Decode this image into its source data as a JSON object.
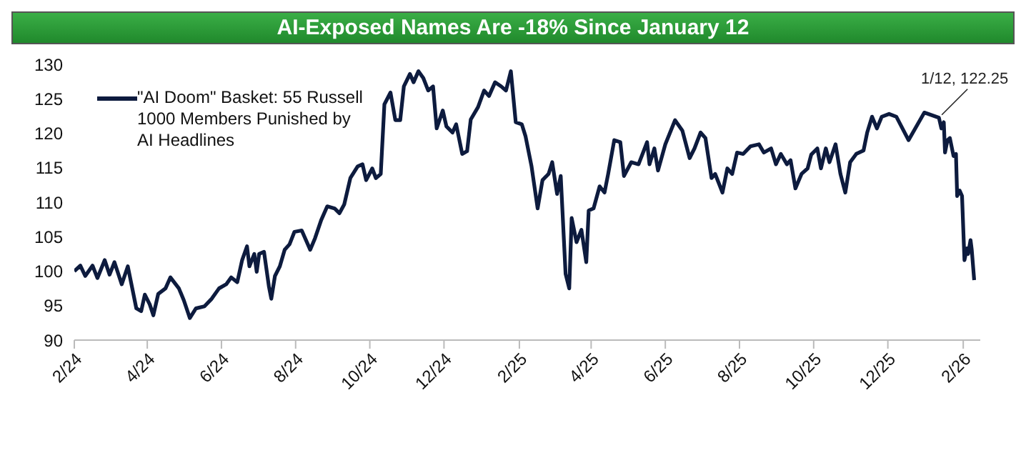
{
  "chart_data": {
    "type": "line",
    "title": "AI-Exposed Names Are -18% Since January 12",
    "legend": "top left",
    "grid": false,
    "marker": "none",
    "line_style": "solid",
    "ylim": [
      90,
      130
    ],
    "yticks": [
      90,
      95,
      100,
      105,
      110,
      115,
      120,
      125,
      130
    ],
    "xlim": [
      "2024-02-01",
      "2026-02-15"
    ],
    "xticks": [
      {
        "value": "2024-02-01",
        "label": "2/24"
      },
      {
        "value": "2024-04-01",
        "label": "4/24"
      },
      {
        "value": "2024-06-01",
        "label": "6/24"
      },
      {
        "value": "2024-08-01",
        "label": "8/24"
      },
      {
        "value": "2024-10-01",
        "label": "10/24"
      },
      {
        "value": "2024-12-01",
        "label": "12/24"
      },
      {
        "value": "2025-02-01",
        "label": "2/25"
      },
      {
        "value": "2025-04-01",
        "label": "4/25"
      },
      {
        "value": "2025-06-01",
        "label": "6/25"
      },
      {
        "value": "2025-08-01",
        "label": "8/25"
      },
      {
        "value": "2025-10-01",
        "label": "10/25"
      },
      {
        "value": "2025-12-01",
        "label": "12/25"
      },
      {
        "value": "2026-02-01",
        "label": "2/26"
      }
    ],
    "annotations": [
      {
        "text": "1/12, 122.25",
        "x": "2026-01-12",
        "y": 122.25
      }
    ],
    "x": [
      "2024-02-01",
      "2024-02-06",
      "2024-02-10",
      "2024-02-16",
      "2024-02-20",
      "2024-02-26",
      "2024-03-01",
      "2024-03-05",
      "2024-03-11",
      "2024-03-16",
      "2024-03-23",
      "2024-03-27",
      "2024-03-30",
      "2024-04-03",
      "2024-04-06",
      "2024-04-10",
      "2024-04-16",
      "2024-04-20",
      "2024-04-27",
      "2024-05-01",
      "2024-05-06",
      "2024-05-11",
      "2024-05-18",
      "2024-05-24",
      "2024-05-30",
      "2024-06-05",
      "2024-06-09",
      "2024-06-14",
      "2024-06-18",
      "2024-06-22",
      "2024-06-24",
      "2024-06-28",
      "2024-06-30",
      "2024-07-02",
      "2024-07-06",
      "2024-07-10",
      "2024-07-12",
      "2024-07-15",
      "2024-07-19",
      "2024-07-23",
      "2024-07-27",
      "2024-07-31",
      "2024-08-06",
      "2024-08-13",
      "2024-08-17",
      "2024-08-22",
      "2024-08-27",
      "2024-09-02",
      "2024-09-06",
      "2024-09-10",
      "2024-09-15",
      "2024-09-21",
      "2024-09-25",
      "2024-09-28",
      "2024-10-03",
      "2024-10-06",
      "2024-10-10",
      "2024-10-13",
      "2024-10-18",
      "2024-10-22",
      "2024-10-26",
      "2024-10-29",
      "2024-11-03",
      "2024-11-06",
      "2024-11-10",
      "2024-11-14",
      "2024-11-18",
      "2024-11-22",
      "2024-11-25",
      "2024-11-30",
      "2024-12-03",
      "2024-12-08",
      "2024-12-11",
      "2024-12-16",
      "2024-12-20",
      "2024-12-23",
      "2024-12-29",
      "2025-01-03",
      "2025-01-07",
      "2025-01-12",
      "2025-01-17",
      "2025-01-21",
      "2025-01-25",
      "2025-01-29",
      "2025-02-03",
      "2025-02-06",
      "2025-02-11",
      "2025-02-16",
      "2025-02-20",
      "2025-02-25",
      "2025-02-28",
      "2025-03-04",
      "2025-03-07",
      "2025-03-11",
      "2025-03-14",
      "2025-03-16",
      "2025-03-20",
      "2025-03-24",
      "2025-03-28",
      "2025-03-30",
      "2025-04-03",
      "2025-04-08",
      "2025-04-12",
      "2025-04-15",
      "2025-04-20",
      "2025-04-25",
      "2025-04-28",
      "2025-05-04",
      "2025-05-10",
      "2025-05-17",
      "2025-05-19",
      "2025-05-23",
      "2025-05-26",
      "2025-06-01",
      "2025-06-09",
      "2025-06-15",
      "2025-06-21",
      "2025-06-25",
      "2025-06-30",
      "2025-07-04",
      "2025-07-09",
      "2025-07-12",
      "2025-07-18",
      "2025-07-22",
      "2025-07-26",
      "2025-07-30",
      "2025-08-04",
      "2025-08-10",
      "2025-08-17",
      "2025-08-21",
      "2025-08-27",
      "2025-08-31",
      "2025-09-04",
      "2025-09-09",
      "2025-09-12",
      "2025-09-16",
      "2025-09-21",
      "2025-09-26",
      "2025-09-29",
      "2025-10-04",
      "2025-10-07",
      "2025-10-11",
      "2025-10-14",
      "2025-10-19",
      "2025-10-23",
      "2025-10-27",
      "2025-10-31",
      "2025-11-05",
      "2025-11-11",
      "2025-11-14",
      "2025-11-18",
      "2025-11-22",
      "2025-11-26",
      "2025-12-02",
      "2025-12-08",
      "2025-12-18",
      "2025-12-31",
      "2026-01-12",
      "2026-01-14",
      "2026-01-16",
      "2026-01-17",
      "2026-01-19",
      "2026-01-21",
      "2026-01-24",
      "2026-01-26",
      "2026-01-27",
      "2026-01-29",
      "2026-01-31",
      "2026-02-02",
      "2026-02-04",
      "2026-02-05",
      "2026-02-07",
      "2026-02-08",
      "2026-02-10"
    ],
    "series": [
      {
        "name": "\"AI Doom\" Basket: 55 Russell 1000 Members Punished by AI Headlines",
        "color": "#0d1b3e",
        "values": [
          100.0,
          100.8,
          99.3,
          100.8,
          99.0,
          101.6,
          99.5,
          101.3,
          98.1,
          100.7,
          94.6,
          94.2,
          96.6,
          95.2,
          93.6,
          96.7,
          97.5,
          99.1,
          97.5,
          95.8,
          93.2,
          94.6,
          94.9,
          96.0,
          97.5,
          98.1,
          99.1,
          98.4,
          101.6,
          103.6,
          100.7,
          102.5,
          99.9,
          102.5,
          102.8,
          97.8,
          96.0,
          99.3,
          100.7,
          103.1,
          103.9,
          105.7,
          105.9,
          103.1,
          104.8,
          107.4,
          109.4,
          109.1,
          108.4,
          109.7,
          113.5,
          115.2,
          115.5,
          113.2,
          114.9,
          113.5,
          114.1,
          124.2,
          125.9,
          121.9,
          121.9,
          126.8,
          128.6,
          127.4,
          129.0,
          128.0,
          126.2,
          126.8,
          120.7,
          123.3,
          121.0,
          120.1,
          121.3,
          117.0,
          117.4,
          122.0,
          123.8,
          126.2,
          125.4,
          127.4,
          126.8,
          126.2,
          129.0,
          121.6,
          121.3,
          119.6,
          115.2,
          109.1,
          113.2,
          114.1,
          115.8,
          111.2,
          113.8,
          99.6,
          97.5,
          107.7,
          104.2,
          106.0,
          101.3,
          108.8,
          109.1,
          112.3,
          111.4,
          114.1,
          119.0,
          118.7,
          113.8,
          115.8,
          115.5,
          118.7,
          115.5,
          117.8,
          114.6,
          118.4,
          121.9,
          120.4,
          116.4,
          117.8,
          120.1,
          119.3,
          113.5,
          114.1,
          111.4,
          114.9,
          114.1,
          117.2,
          117.0,
          118.1,
          118.4,
          117.2,
          117.8,
          115.5,
          117.0,
          115.5,
          116.1,
          112.0,
          114.1,
          114.9,
          116.9,
          117.8,
          114.9,
          117.8,
          115.8,
          118.4,
          114.1,
          111.4,
          115.8,
          117.0,
          117.5,
          120.1,
          122.4,
          120.7,
          122.4,
          122.8,
          122.4,
          119.0,
          123.0,
          122.25,
          120.7,
          121.6,
          117.2,
          119.0,
          119.3,
          116.7,
          117.0,
          110.9,
          111.7,
          110.9,
          101.6,
          103.3,
          102.5,
          104.5,
          103.1,
          98.7
        ]
      }
    ]
  }
}
